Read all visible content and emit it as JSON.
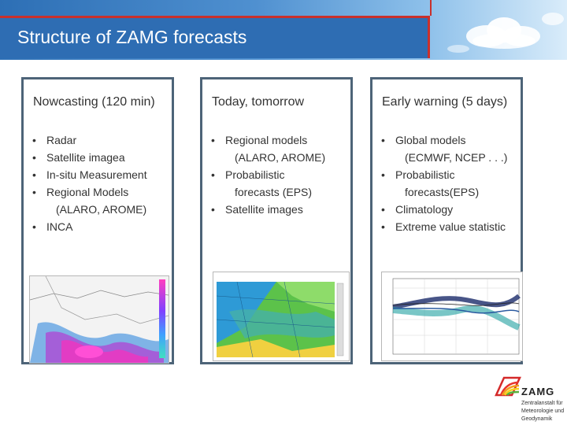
{
  "title": "Structure of ZAMG forecasts",
  "columns": [
    {
      "heading": "Nowcasting (120 min)",
      "items": [
        "Radar",
        "Satellite imagea",
        "In-situ Measurement",
        "Regional Models",
        "(ALARO, AROME)",
        "INCA"
      ]
    },
    {
      "heading": "Today, tomorrow",
      "items": [
        "Regional models",
        "(ALARO, AROME)",
        "Probabilistic",
        "forecasts (EPS)",
        "Satellite images"
      ]
    },
    {
      "heading": "Early warning (5 days)",
      "items": [
        "Global models",
        "(ECMWF, NCEP . . .)",
        "Probabilistic",
        "forecasts(EPS)",
        "Climatology",
        "Extreme value statistic"
      ]
    }
  ],
  "logo": {
    "name": "ZAMG",
    "subtitle": [
      "Zentralanstalt für",
      "Meteorologie und",
      "Geodynamik"
    ]
  },
  "colors": {
    "header_blue": "#2e6db3",
    "accent_red": "#c9302c",
    "panel_border": "#4d6478"
  }
}
